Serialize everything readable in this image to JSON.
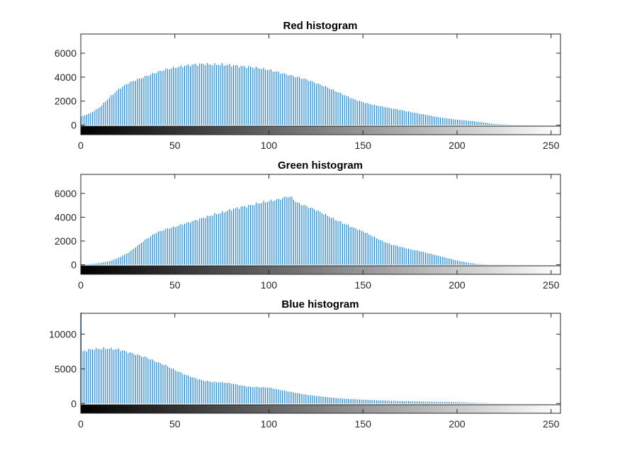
{
  "bar_color": "#0072BD",
  "chart_data": [
    {
      "type": "bar",
      "title": "Red histogram",
      "xlim": [
        0,
        255
      ],
      "ylim": [
        -800,
        7600
      ],
      "xticks": [
        0,
        50,
        100,
        150,
        200,
        250
      ],
      "yticks": [
        0,
        2000,
        4000,
        6000
      ],
      "x_tick_labels": [
        "0",
        "50",
        "100",
        "150",
        "200",
        "250"
      ],
      "y_tick_labels": [
        "0",
        "2000",
        "4000",
        "6000"
      ],
      "colorbar": "grayscale 0-255",
      "profile": [
        [
          0,
          700
        ],
        [
          5,
          1000
        ],
        [
          10,
          1500
        ],
        [
          15,
          2300
        ],
        [
          20,
          3000
        ],
        [
          25,
          3500
        ],
        [
          30,
          3800
        ],
        [
          35,
          4100
        ],
        [
          40,
          4400
        ],
        [
          45,
          4650
        ],
        [
          50,
          4800
        ],
        [
          55,
          4950
        ],
        [
          60,
          5050
        ],
        [
          65,
          5100
        ],
        [
          70,
          5050
        ],
        [
          75,
          5050
        ],
        [
          80,
          5000
        ],
        [
          85,
          4900
        ],
        [
          90,
          4850
        ],
        [
          95,
          4750
        ],
        [
          100,
          4600
        ],
        [
          105,
          4400
        ],
        [
          110,
          4200
        ],
        [
          115,
          4000
        ],
        [
          120,
          3800
        ],
        [
          125,
          3500
        ],
        [
          130,
          3200
        ],
        [
          135,
          2850
        ],
        [
          140,
          2500
        ],
        [
          145,
          2150
        ],
        [
          150,
          1900
        ],
        [
          155,
          1700
        ],
        [
          160,
          1550
        ],
        [
          165,
          1400
        ],
        [
          170,
          1250
        ],
        [
          175,
          1100
        ],
        [
          180,
          950
        ],
        [
          185,
          800
        ],
        [
          190,
          650
        ],
        [
          195,
          550
        ],
        [
          200,
          450
        ],
        [
          205,
          380
        ],
        [
          210,
          300
        ],
        [
          215,
          200
        ],
        [
          220,
          100
        ],
        [
          225,
          50
        ],
        [
          230,
          20
        ],
        [
          255,
          0
        ]
      ]
    },
    {
      "type": "bar",
      "title": "Green histogram",
      "xlim": [
        0,
        255
      ],
      "ylim": [
        -800,
        7600
      ],
      "xticks": [
        0,
        50,
        100,
        150,
        200,
        250
      ],
      "yticks": [
        0,
        2000,
        4000,
        6000
      ],
      "x_tick_labels": [
        "0",
        "50",
        "100",
        "150",
        "200",
        "250"
      ],
      "y_tick_labels": [
        "0",
        "2000",
        "4000",
        "6000"
      ],
      "colorbar": "grayscale 0-255",
      "profile": [
        [
          0,
          20
        ],
        [
          5,
          60
        ],
        [
          10,
          150
        ],
        [
          15,
          300
        ],
        [
          20,
          600
        ],
        [
          25,
          1000
        ],
        [
          30,
          1600
        ],
        [
          35,
          2200
        ],
        [
          40,
          2700
        ],
        [
          45,
          3000
        ],
        [
          50,
          3200
        ],
        [
          55,
          3450
        ],
        [
          60,
          3700
        ],
        [
          65,
          3950
        ],
        [
          70,
          4200
        ],
        [
          75,
          4400
        ],
        [
          80,
          4650
        ],
        [
          85,
          4850
        ],
        [
          90,
          5000
        ],
        [
          95,
          5200
        ],
        [
          100,
          5350
        ],
        [
          105,
          5500
        ],
        [
          110,
          5750
        ],
        [
          112,
          5650
        ],
        [
          115,
          5200
        ],
        [
          120,
          4900
        ],
        [
          125,
          4600
        ],
        [
          130,
          4200
        ],
        [
          135,
          3800
        ],
        [
          140,
          3450
        ],
        [
          145,
          3100
        ],
        [
          150,
          2800
        ],
        [
          155,
          2400
        ],
        [
          160,
          2000
        ],
        [
          165,
          1700
        ],
        [
          170,
          1500
        ],
        [
          175,
          1300
        ],
        [
          180,
          1150
        ],
        [
          185,
          950
        ],
        [
          190,
          750
        ],
        [
          195,
          550
        ],
        [
          200,
          350
        ],
        [
          205,
          200
        ],
        [
          210,
          80
        ],
        [
          215,
          20
        ],
        [
          255,
          0
        ]
      ]
    },
    {
      "type": "bar",
      "title": "Blue histogram",
      "xlim": [
        0,
        255
      ],
      "ylim": [
        -1400,
        13000
      ],
      "xticks": [
        0,
        50,
        100,
        150,
        200,
        250
      ],
      "yticks": [
        0,
        5000,
        10000
      ],
      "x_tick_labels": [
        "0",
        "50",
        "100",
        "150",
        "200",
        "250"
      ],
      "y_tick_labels": [
        "0",
        "5000",
        "10000"
      ],
      "colorbar": "grayscale 0-255",
      "profile": [
        [
          0,
          13000
        ],
        [
          1,
          7500
        ],
        [
          5,
          7800
        ],
        [
          10,
          7900
        ],
        [
          15,
          7900
        ],
        [
          20,
          7800
        ],
        [
          25,
          7400
        ],
        [
          30,
          7000
        ],
        [
          35,
          6600
        ],
        [
          40,
          6000
        ],
        [
          45,
          5500
        ],
        [
          50,
          4800
        ],
        [
          55,
          4200
        ],
        [
          60,
          3700
        ],
        [
          65,
          3300
        ],
        [
          70,
          3100
        ],
        [
          75,
          3050
        ],
        [
          80,
          2900
        ],
        [
          85,
          2600
        ],
        [
          90,
          2400
        ],
        [
          95,
          2350
        ],
        [
          100,
          2300
        ],
        [
          105,
          2000
        ],
        [
          110,
          1750
        ],
        [
          115,
          1500
        ],
        [
          120,
          1250
        ],
        [
          125,
          1100
        ],
        [
          130,
          950
        ],
        [
          135,
          800
        ],
        [
          140,
          700
        ],
        [
          150,
          550
        ],
        [
          160,
          450
        ],
        [
          170,
          350
        ],
        [
          180,
          300
        ],
        [
          190,
          250
        ],
        [
          200,
          200
        ],
        [
          210,
          100
        ],
        [
          220,
          30
        ],
        [
          230,
          10
        ],
        [
          255,
          0
        ]
      ]
    }
  ]
}
